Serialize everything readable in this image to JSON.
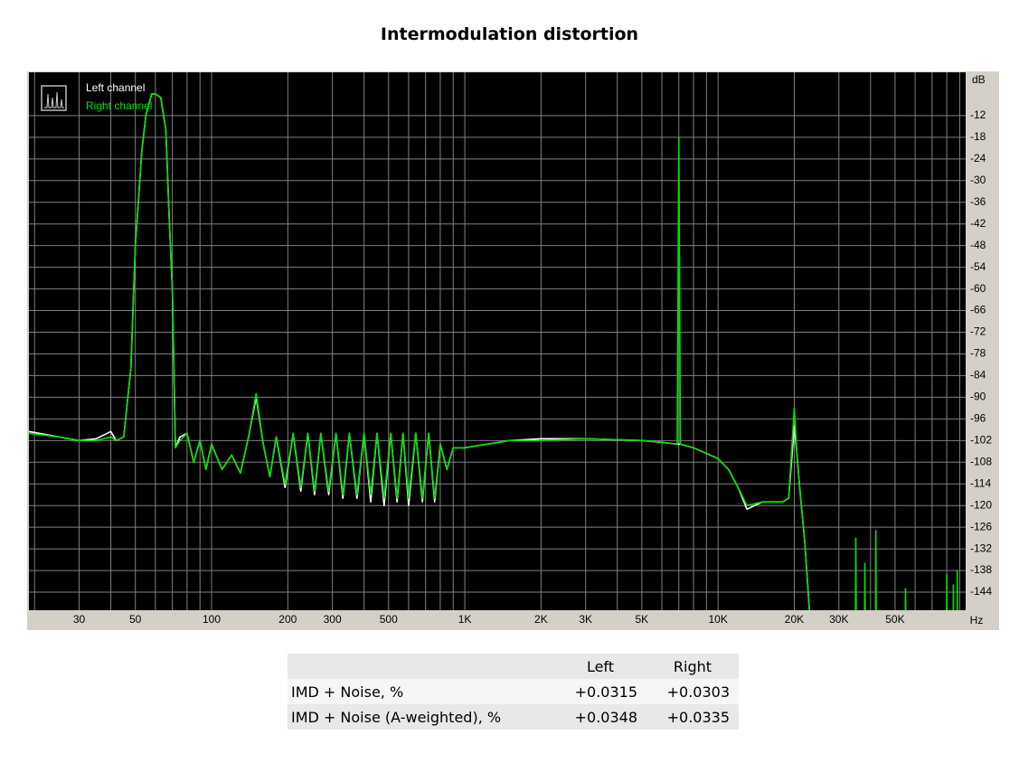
{
  "chart_data": {
    "type": "line",
    "title": "Intermodulation distortion",
    "x_unit": "Hz",
    "y_unit": "dB",
    "xscale": "log",
    "xlim": [
      19,
      95000
    ],
    "ylim": [
      -149,
      0
    ],
    "grid": true,
    "legend": "upper left",
    "xticks": [
      {
        "value": 30,
        "label": "30"
      },
      {
        "value": 50,
        "label": "50"
      },
      {
        "value": 100,
        "label": "100"
      },
      {
        "value": 200,
        "label": "200"
      },
      {
        "value": 300,
        "label": "300"
      },
      {
        "value": 500,
        "label": "500"
      },
      {
        "value": 1000,
        "label": "1K"
      },
      {
        "value": 2000,
        "label": "2K"
      },
      {
        "value": 3000,
        "label": "3K"
      },
      {
        "value": 5000,
        "label": "5K"
      },
      {
        "value": 10000,
        "label": "10K"
      },
      {
        "value": 20000,
        "label": "20K"
      },
      {
        "value": 30000,
        "label": "30K"
      },
      {
        "value": 50000,
        "label": "50K"
      }
    ],
    "xgrid": [
      20,
      30,
      40,
      50,
      60,
      70,
      80,
      90,
      100,
      200,
      300,
      400,
      500,
      600,
      700,
      800,
      900,
      1000,
      2000,
      3000,
      4000,
      5000,
      6000,
      7000,
      8000,
      9000,
      10000,
      20000,
      30000,
      40000,
      50000,
      60000,
      70000,
      80000,
      90000
    ],
    "yticks": [
      -12,
      -18,
      -24,
      -30,
      -36,
      -42,
      -48,
      -54,
      -60,
      -66,
      -72,
      -78,
      -84,
      -90,
      -96,
      -102,
      -108,
      -114,
      -120,
      -126,
      -132,
      -138,
      -144
    ],
    "x": [
      19,
      25,
      30,
      35,
      40,
      42,
      45,
      48,
      50,
      53,
      55,
      58,
      60,
      63,
      66,
      68,
      70,
      72,
      75,
      80,
      85,
      90,
      95,
      100,
      110,
      120,
      130,
      140,
      150,
      160,
      170,
      180,
      195,
      210,
      225,
      240,
      255,
      270,
      290,
      310,
      330,
      350,
      375,
      400,
      425,
      450,
      480,
      510,
      540,
      570,
      600,
      640,
      680,
      720,
      760,
      800,
      850,
      900,
      1000,
      1500,
      2000,
      3000,
      5000,
      6000,
      6900,
      7000,
      7100,
      8000,
      10000,
      11000,
      12000,
      13000,
      15000,
      18000,
      19000,
      20000,
      20500,
      21000,
      22000,
      23000,
      30000,
      34900,
      35000,
      35100,
      37900,
      38000,
      38100,
      41900,
      42000,
      42100,
      54900,
      55000,
      55100,
      79900,
      80000,
      80100,
      84900,
      85000,
      85100,
      87900,
      88000,
      88100,
      94000
    ],
    "series": [
      {
        "name": "Left channel",
        "color": "#ffffff",
        "values": [
          -99.5,
          -101,
          -102,
          -101.5,
          -99.5,
          -102,
          -101,
          -82,
          -48,
          -22,
          -12,
          -6,
          -6,
          -7,
          -16,
          -40,
          -60,
          -104,
          -101,
          -100,
          -108,
          -102,
          -110,
          -103,
          -110,
          -106,
          -111,
          -101,
          -90,
          -103,
          -112,
          -101,
          -115,
          -100,
          -116,
          -100,
          -117,
          -100,
          -117,
          -100,
          -118,
          -100,
          -118,
          -100,
          -119,
          -100,
          -120,
          -100,
          -119,
          -100,
          -120,
          -100,
          -119,
          -100,
          -119,
          -103,
          -110,
          -104,
          -104,
          -102,
          -101.5,
          -101.5,
          -102,
          -102.5,
          -103,
          -103,
          -103,
          -104,
          -107,
          -110,
          -115,
          -121,
          -119,
          -119,
          -118,
          -98,
          -106,
          -115,
          -130,
          -150,
          -150,
          -150,
          -150,
          -150,
          -150,
          -150,
          -150,
          -150,
          -150,
          -150,
          -150,
          -150,
          -150,
          -150,
          -150,
          -150,
          -150,
          -150,
          -150,
          -150,
          -150,
          -150,
          -150
        ]
      },
      {
        "name": "Right channel",
        "color": "#00e000",
        "values": [
          -100,
          -101,
          -102,
          -102,
          -101,
          -102,
          -101,
          -82,
          -48,
          -22,
          -12,
          -6,
          -6,
          -7,
          -16,
          -40,
          -60,
          -104,
          -102,
          -100,
          -108,
          -102,
          -110,
          -103,
          -110,
          -106,
          -111,
          -101,
          -89,
          -103,
          -112,
          -101,
          -114,
          -100,
          -115,
          -100,
          -116,
          -100,
          -116,
          -100,
          -117,
          -100,
          -117,
          -100,
          -117,
          -100,
          -118,
          -100,
          -118,
          -100,
          -118,
          -100,
          -118,
          -100,
          -118,
          -103,
          -110,
          -104,
          -104,
          -102,
          -102,
          -101.5,
          -102,
          -102.5,
          -103,
          -18,
          -103,
          -104,
          -107,
          -110,
          -115,
          -120,
          -119,
          -119,
          -118,
          -93,
          -106,
          -115,
          -130,
          -150,
          -150,
          -150,
          -129,
          -150,
          -150,
          -136,
          -150,
          -150,
          -127,
          -150,
          -150,
          -143,
          -150,
          -150,
          -139,
          -150,
          -150,
          -142,
          -150,
          -150,
          -138,
          -150,
          -150
        ]
      }
    ]
  },
  "table": {
    "columns": [
      "Left",
      "Right"
    ],
    "rows": [
      {
        "label": "IMD + Noise, %",
        "values": [
          "+0.0315",
          "+0.0303"
        ]
      },
      {
        "label": "IMD + Noise (A-weighted), %",
        "values": [
          "+0.0348",
          "+0.0335"
        ]
      }
    ]
  }
}
